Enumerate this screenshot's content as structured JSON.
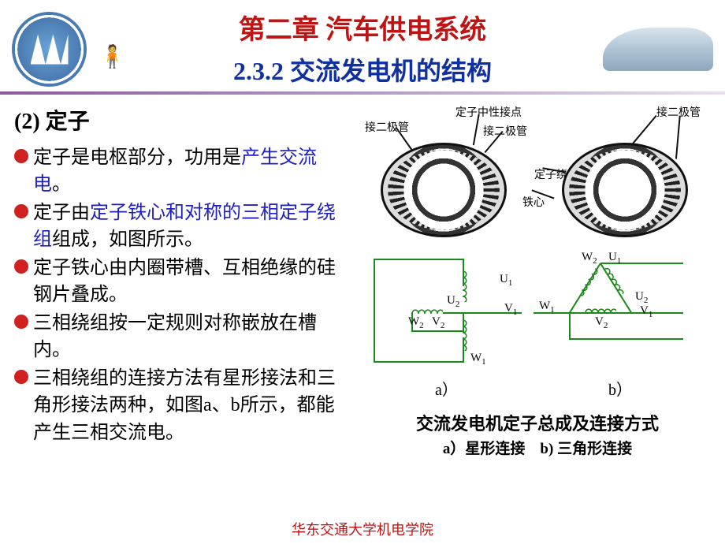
{
  "colors": {
    "chapter_title": "#c01414",
    "section_title": "#1030a0",
    "bullet": "#d02020",
    "highlight": "#2020c0",
    "body_text": "#000000",
    "circuit": "#1a8a1a",
    "footer": "#c01414"
  },
  "header": {
    "chapter": "第二章 汽车供电系统",
    "section": "2.3.2 交流发电机的结构"
  },
  "subheading": "(2) 定子",
  "bullets": [
    {
      "pre": "定子是电枢部分，功用是",
      "hl": "产生交流电",
      "post": "。"
    },
    {
      "pre": "定子由",
      "hl": "定子铁心和对称的三相定子绕组",
      "post": "组成，如图所示。"
    },
    {
      "pre": "定子铁心由内圈带槽、互相绝缘的硅钢片叠成。",
      "hl": "",
      "post": ""
    },
    {
      "pre": "三相绕组按一定规则对称嵌放在槽内。",
      "hl": "",
      "post": ""
    },
    {
      "pre": "三相绕组的连接方法有星形接法和三角形接法两种，如图a、b所示，都能产生三相交流电。",
      "hl": "",
      "post": ""
    }
  ],
  "fig_top_labels": {
    "diode_l": "接二极管",
    "neutral": "定子中性接点",
    "diode_m": "接二极管",
    "diode_r": "接二极管",
    "winding": "定子绕组",
    "core": "铁心"
  },
  "fig_bottom": {
    "a_label": "a）",
    "b_label": "b）",
    "terminals": {
      "U1": "U",
      "U2": "U",
      "V1": "V",
      "V2": "V",
      "W1": "W",
      "W2": "W"
    }
  },
  "caption": {
    "main": "交流发电机定子总成及连接方式",
    "sub_a_key": "a）",
    "sub_a": "星形连接",
    "sub_b_key": "b) ",
    "sub_b": "三角形连接"
  },
  "footer": "华东交通大学机电学院"
}
